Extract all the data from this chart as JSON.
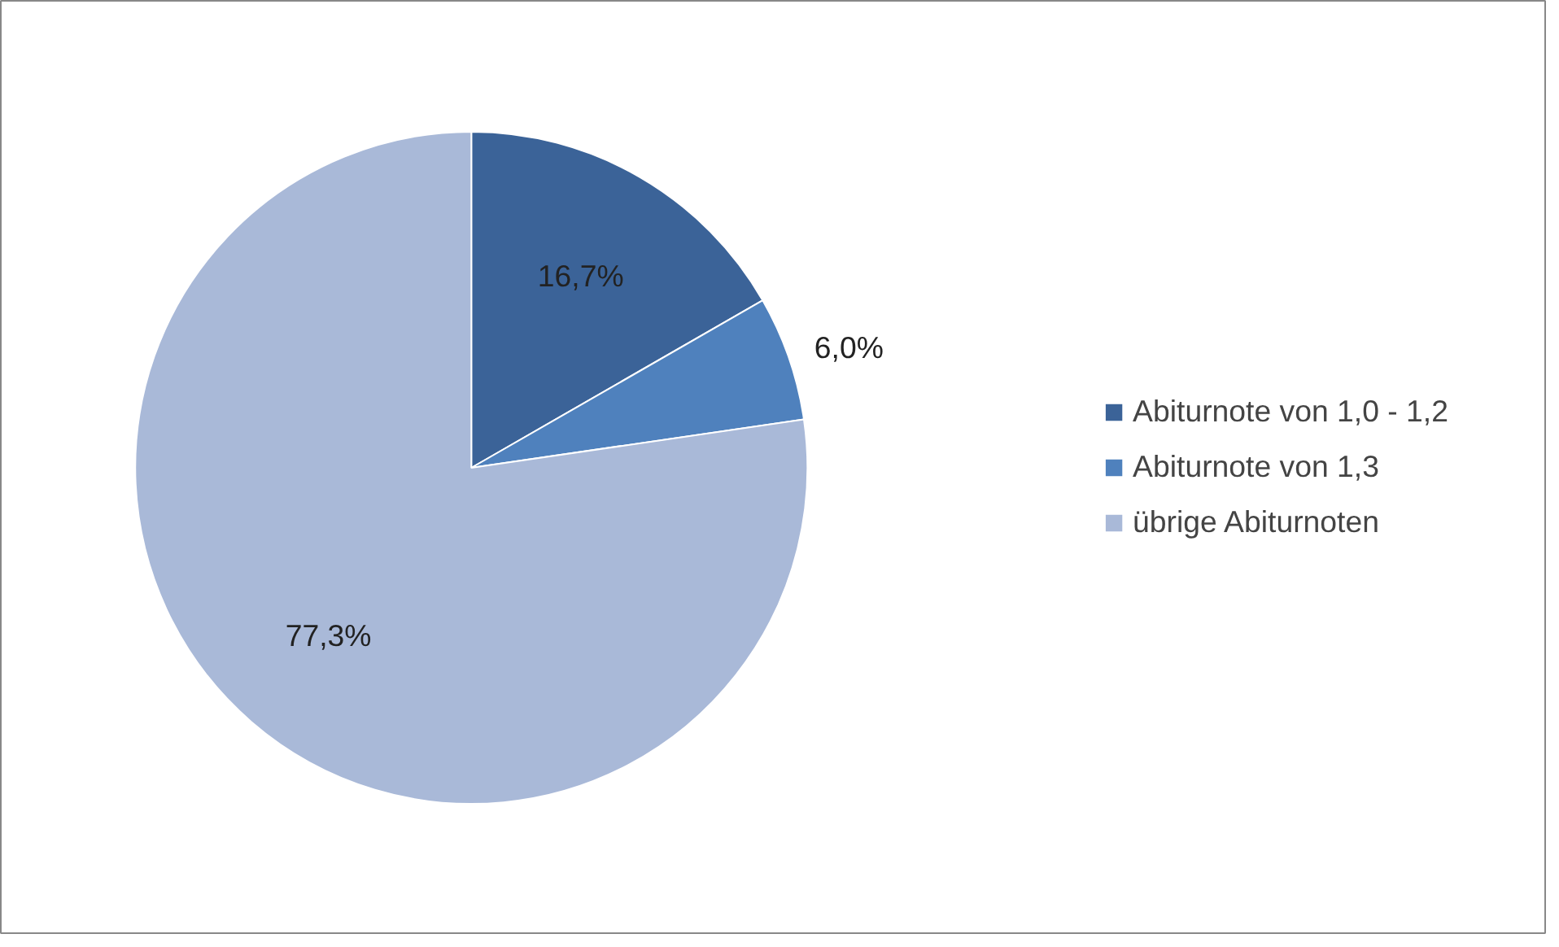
{
  "chart_data": {
    "type": "pie",
    "categories": [
      "Abiturnote von 1,0 - 1,2",
      "Abiturnote von 1,3",
      "übrige Abiturnoten"
    ],
    "values": [
      16.7,
      6.0,
      77.3
    ],
    "value_labels": [
      "16,7%",
      "6,0%",
      "77,3%"
    ],
    "colors": [
      "#3b6398",
      "#4f81bd",
      "#a9b9d8"
    ],
    "legend": "right"
  }
}
